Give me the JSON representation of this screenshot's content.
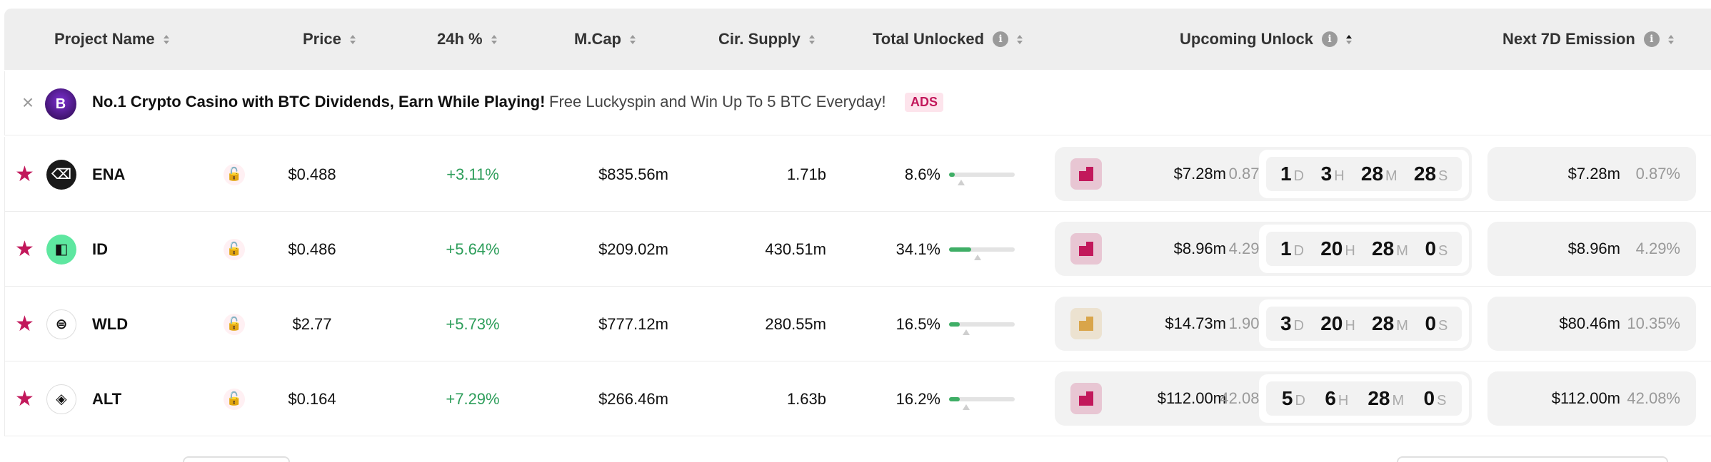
{
  "header": {
    "project_name": "Project Name",
    "price": "Price",
    "change_24h": "24h %",
    "mcap": "M.Cap",
    "cir_supply": "Cir. Supply",
    "total_unlocked": "Total Unlocked",
    "upcoming_unlock": "Upcoming Unlock",
    "next_7d_emission": "Next 7D Emission",
    "info_glyph": "i"
  },
  "ad": {
    "close_glyph": "×",
    "logo_glyph": "B",
    "title": "No.1 Crypto Casino with BTC Dividends, Earn While Playing!",
    "subtitle": "Free Luckyspin and Win Up To 5 BTC Everyday!",
    "badge": "ADS"
  },
  "rows": [
    {
      "symbol": "ENA",
      "price": "$0.488",
      "change": "+3.11%",
      "mcap": "$835.56m",
      "supply": "1.71b",
      "unlocked": "8.6%",
      "unlocked_fraction": 0.086,
      "unlock_value": "$7.28m",
      "unlock_pct": "0.87%",
      "countdown": {
        "d": "1",
        "h": "3",
        "m": "28",
        "s": "28"
      },
      "emission_value": "$7.28m",
      "emission_pct": "0.87%",
      "coin_bg": "#1a1a1a",
      "coin_fg": "#ffffff",
      "coin_glyph": "⌫",
      "unlock_icon_color": "#c2185b"
    },
    {
      "symbol": "ID",
      "price": "$0.486",
      "change": "+5.64%",
      "mcap": "$209.02m",
      "supply": "430.51m",
      "unlocked": "34.1%",
      "unlocked_fraction": 0.341,
      "unlock_value": "$8.96m",
      "unlock_pct": "4.29%",
      "countdown": {
        "d": "1",
        "h": "20",
        "m": "28",
        "s": "0"
      },
      "emission_value": "$8.96m",
      "emission_pct": "4.29%",
      "coin_bg": "#5ee7a0",
      "coin_fg": "#111111",
      "coin_glyph": "◧",
      "unlock_icon_color": "#c2185b"
    },
    {
      "symbol": "WLD",
      "price": "$2.77",
      "change": "+5.73%",
      "mcap": "$777.12m",
      "supply": "280.55m",
      "unlocked": "16.5%",
      "unlocked_fraction": 0.165,
      "unlock_value": "$14.73m",
      "unlock_pct": "1.90%",
      "countdown": {
        "d": "3",
        "h": "20",
        "m": "28",
        "s": "0"
      },
      "emission_value": "$80.46m",
      "emission_pct": "10.35%",
      "coin_bg": "#ffffff",
      "coin_fg": "#111111",
      "coin_glyph": "⊜",
      "unlock_icon_color": "#d9a54a"
    },
    {
      "symbol": "ALT",
      "price": "$0.164",
      "change": "+7.29%",
      "mcap": "$266.46m",
      "supply": "1.63b",
      "unlocked": "16.2%",
      "unlocked_fraction": 0.162,
      "unlock_value": "$112.00m",
      "unlock_pct": "42.08%",
      "countdown": {
        "d": "5",
        "h": "6",
        "m": "28",
        "s": "0"
      },
      "emission_value": "$112.00m",
      "emission_pct": "42.08%",
      "coin_bg": "#ffffff",
      "coin_fg": "#111111",
      "coin_glyph": "◈",
      "unlock_icon_color": "#c2185b"
    }
  ],
  "units": {
    "d": "D",
    "h": "H",
    "m": "M",
    "s": "S"
  },
  "icons": {
    "star": "★",
    "lock": "🔓"
  },
  "colors": {
    "positive": "#2e9e5b",
    "accent": "#c2185b",
    "bar_fill": "#3fae66"
  }
}
